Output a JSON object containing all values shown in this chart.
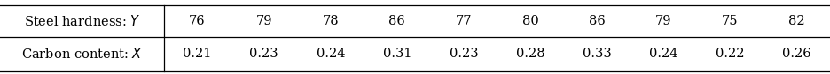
{
  "row1_label": "Steel hardness: $Y$",
  "row2_label": "Carbon content: $X$",
  "row1_values": [
    "76",
    "79",
    "78",
    "86",
    "77",
    "80",
    "86",
    "79",
    "75",
    "82"
  ],
  "row2_values": [
    "0.21",
    "0.23",
    "0.24",
    "0.31",
    "0.23",
    "0.28",
    "0.33",
    "0.24",
    "0.22",
    "0.26"
  ],
  "background_color": "#ffffff",
  "text_color": "#000000",
  "border_color": "#000000",
  "font_size": 10.5,
  "figsize": [
    9.36,
    0.84
  ],
  "dpi": 100
}
